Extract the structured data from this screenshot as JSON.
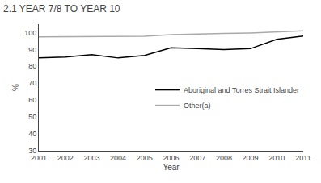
{
  "chart_data": {
    "type": "line",
    "title": "2.1 YEAR 7/8 TO YEAR 10",
    "x": [
      2001,
      2002,
      2003,
      2004,
      2005,
      2006,
      2007,
      2008,
      2009,
      2010,
      2011
    ],
    "series": [
      {
        "name": "Aboriginal and Torres Strait Islander",
        "color": "#000000",
        "values": [
          85.0,
          85.5,
          87.0,
          85.0,
          86.5,
          91.0,
          90.5,
          90.0,
          90.5,
          96.0,
          98.0
        ]
      },
      {
        "name": "Other(a)",
        "color": "#aaaaaa",
        "values": [
          97.5,
          97.5,
          97.8,
          97.5,
          97.8,
          98.8,
          99.0,
          99.5,
          99.8,
          100.5,
          101.0
        ]
      }
    ],
    "xlabel": "Year",
    "ylabel": "%",
    "xlim": [
      2001,
      2011
    ],
    "xticks": [
      2001,
      2002,
      2003,
      2004,
      2005,
      2006,
      2007,
      2008,
      2009,
      2010,
      2011
    ],
    "ylim": [
      30,
      105
    ],
    "yticks": [
      30,
      40,
      50,
      60,
      70,
      80,
      90,
      100
    ],
    "grid": false,
    "legend": "right"
  }
}
